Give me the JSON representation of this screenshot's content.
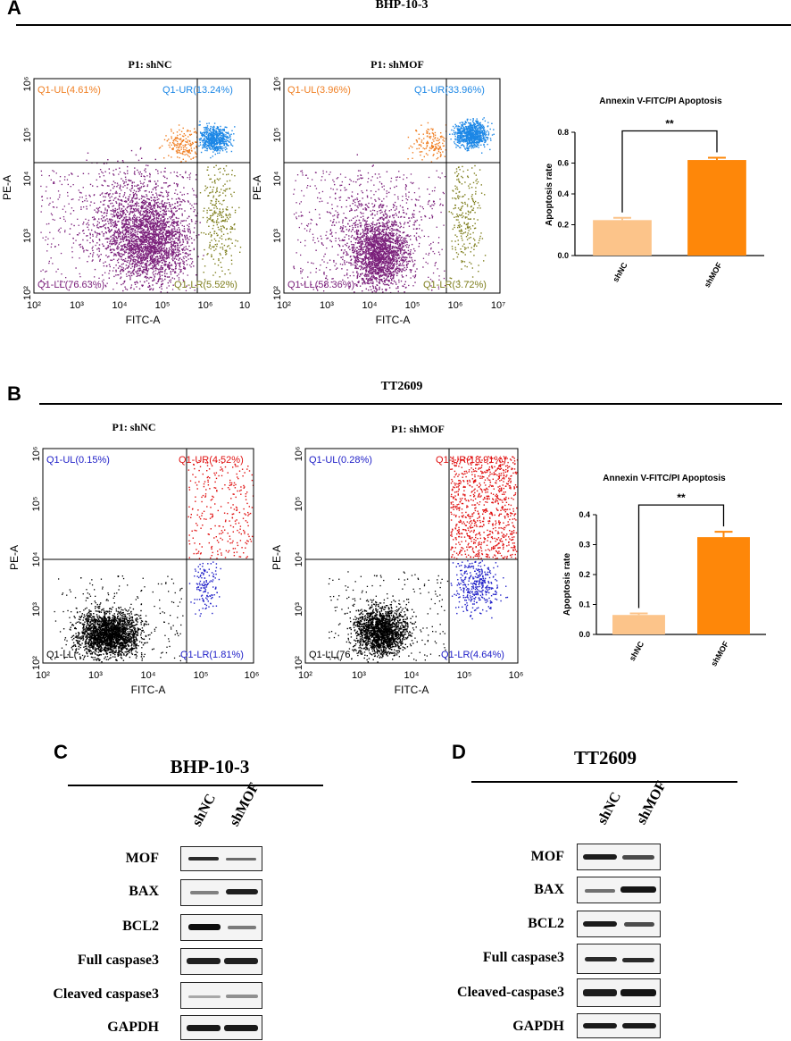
{
  "section_a": {
    "letter": "A",
    "title": "BHP-10-3"
  },
  "section_b": {
    "letter": "B",
    "title": "TT2609"
  },
  "flow_A1": {
    "title": "P1: shNC",
    "xlabel": "FITC-A",
    "ylabel": "PE-A",
    "xticks": [
      "10²",
      "10³",
      "10⁴",
      "10⁵",
      "10⁶",
      "10"
    ],
    "yticks": [
      "10²",
      "10³",
      "10⁴",
      "10⁵",
      "10⁶"
    ],
    "ul": "Q1-UL(4.61%)",
    "ur": "Q1-UR(13.24%)",
    "ll": "Q1-LL(76.63%)",
    "lr": "Q1-LR(5.52%)"
  },
  "flow_A2": {
    "title": "P1: shMOF",
    "xlabel": "FITC-A",
    "ylabel": "PE-A",
    "xticks": [
      "10²",
      "10³",
      "10⁴",
      "10⁵",
      "10⁶",
      "10⁷"
    ],
    "yticks": [
      "10²",
      "10³",
      "10⁴",
      "10⁵",
      "10⁶"
    ],
    "ul": "Q1-UL(3.96%)",
    "ur": "Q1-UR(33.96%)",
    "ll": "Q1-LL(58.36%)",
    "lr": "Q1-LR(3.72%)"
  },
  "flow_B1": {
    "title": "P1: shNC",
    "xlabel": "FITC-A",
    "ylabel": "PE-A",
    "xticks": [
      "10²",
      "10³",
      "10⁴",
      "10⁵",
      "10⁶"
    ],
    "yticks": [
      "10²",
      "10³",
      "10⁴",
      "10⁵",
      "10⁶"
    ],
    "ul": "Q1-UL(0.15%)",
    "ur": "Q1-UR(4.52%)",
    "ll": "Q1-LL(",
    "lr": "Q1-LR(1.81%)"
  },
  "flow_B2": {
    "title": "P1: shMOF",
    "xlabel": "FITC-A",
    "ylabel": "PE-A",
    "xticks": [
      "10²",
      "10³",
      "10⁴",
      "10⁵",
      "10⁶"
    ],
    "yticks": [
      "10²",
      "10³",
      "10⁴",
      "10⁵",
      "10⁶"
    ],
    "ul": "Q1-UL(0.28%)",
    "ur": "Q1-UR(18.91%)",
    "ll": "Q1-LL(76",
    "lr": "Q1-LR(4.64%)"
  },
  "chart_data": [
    {
      "type": "bar",
      "id": "A",
      "title": "Annexin V-FITC/PI Apoptosis",
      "ylabel": "Apoptosis rate",
      "categories": [
        "shNC",
        "shMOF"
      ],
      "values": [
        0.23,
        0.62
      ],
      "errors": [
        0.015,
        0.015
      ],
      "ylim": [
        0,
        0.8
      ],
      "yticks": [
        "0.0",
        "0.2",
        "0.4",
        "0.6",
        "0.8"
      ],
      "significance": "**",
      "colors": [
        "#fcc48a",
        "#fe8709"
      ]
    },
    {
      "type": "bar",
      "id": "B",
      "title": "Annexin V-FITC/PI Apoptosis",
      "ylabel": "Apoptosis rate",
      "categories": [
        "shNC",
        "shMOF"
      ],
      "values": [
        0.065,
        0.325
      ],
      "errors": [
        0.005,
        0.018
      ],
      "ylim": [
        0,
        0.4
      ],
      "yticks": [
        "0.0",
        "0.1",
        "0.2",
        "0.3",
        "0.4"
      ],
      "significance": "**",
      "colors": [
        "#fcc48a",
        "#fe8709"
      ]
    }
  ],
  "western_c": {
    "letter": "C",
    "title": "BHP-10-3",
    "lanes": [
      "shNC",
      "shMOF"
    ],
    "rows": [
      "MOF",
      "BAX",
      "BCL2",
      "Full caspase3",
      "Cleaved caspase3",
      "GAPDH"
    ]
  },
  "western_d": {
    "letter": "D",
    "title": "TT2609",
    "lanes": [
      "shNC",
      "shMOF"
    ],
    "rows": [
      "MOF",
      "BAX",
      "BCL2",
      "Full caspase3",
      "Cleaved-caspase3",
      "GAPDH"
    ]
  }
}
